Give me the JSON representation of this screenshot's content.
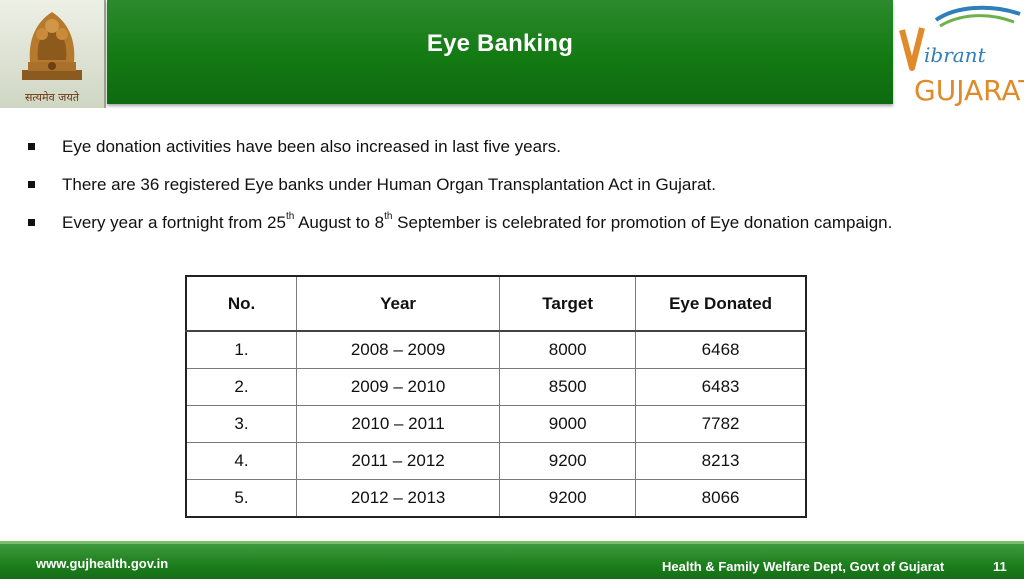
{
  "header": {
    "title": "Eye Banking",
    "emblem_caption": "सत्यमेव जयते",
    "logo_script": "ibrant",
    "logo_word": "GUJARAT"
  },
  "bullets": [
    "Eye donation activities have been also increased in last five years.",
    "There are 36 registered Eye banks under Human Organ Transplantation Act in Gujarat."
  ],
  "bullet3": {
    "part1": "Every year a fortnight from 25",
    "sup1": "th",
    "part2": " August to 8",
    "sup2": "th",
    "part3": " September is celebrated for promotion of Eye donation campaign."
  },
  "table": {
    "headers": [
      "No.",
      "Year",
      "Target",
      "Eye Donated"
    ],
    "rows": [
      [
        "1.",
        "2008 – 2009",
        "8000",
        "6468"
      ],
      [
        "2.",
        "2009 – 2010",
        "8500",
        "6483"
      ],
      [
        "3.",
        "2010 – 2011",
        "9000",
        "7782"
      ],
      [
        "4.",
        "2011 – 2012",
        "9200",
        "8213"
      ],
      [
        "5.",
        "2012 – 2013",
        "9200",
        "8066"
      ]
    ]
  },
  "footer": {
    "website": "www.gujhealth.gov.in",
    "department": "Health & Family Welfare Dept, Govt of Gujarat",
    "page_number": "11"
  },
  "colors": {
    "header_green": "#137a13",
    "footer_green": "#1c7e1c",
    "logo_blue": "#2f7fb8",
    "logo_orange": "#e08a2a"
  }
}
